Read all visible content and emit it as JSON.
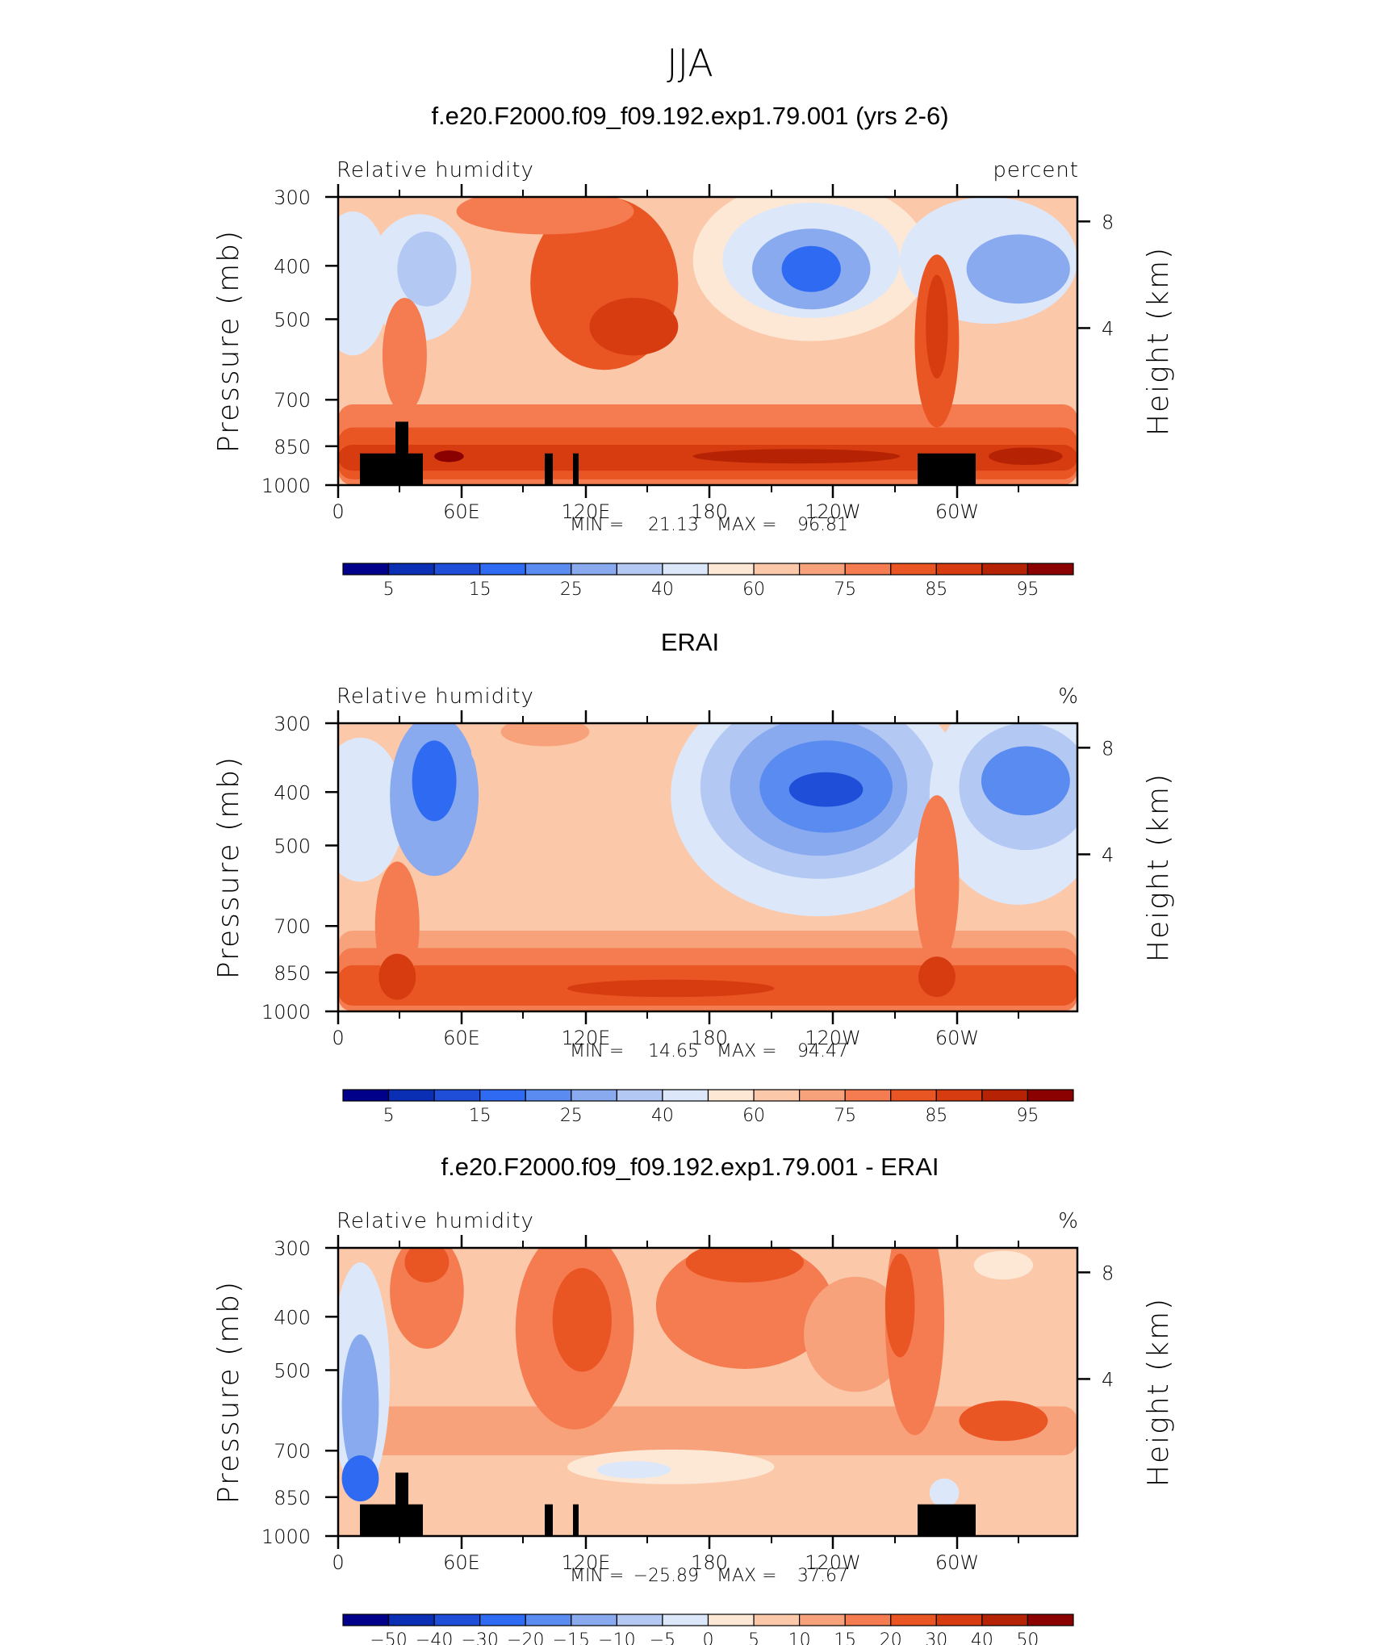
{
  "figure": {
    "title": "JJA"
  },
  "chart_data": [
    {
      "type": "heatmap",
      "title": "f.e20.F2000.f09_f09.192.exp1.79.001 (yrs 2-6)",
      "left_label": "Relative humidity",
      "units_label": "percent",
      "ylabel": "Pressure (mb)",
      "ylabel_right": "Height (km)",
      "xlabel": "",
      "x_ticks": [
        "0",
        "60E",
        "120E",
        "180",
        "120W",
        "60W"
      ],
      "y_ticks": [
        "300",
        "400",
        "500",
        "700",
        "850",
        "1000"
      ],
      "y_ticks_right": [
        "8",
        "4"
      ],
      "xlim": [
        0,
        360
      ],
      "ylim": [
        1000,
        300
      ],
      "stats": {
        "min_label": "MIN =",
        "min": "21.13",
        "max_label": "MAX =",
        "max": "96.81"
      },
      "colorbar": {
        "colors": [
          "#00008b",
          "#0a2fb4",
          "#1f4fd8",
          "#2f6bf2",
          "#5a8bf0",
          "#8aaaf0",
          "#b4c8f4",
          "#dce8fa",
          "#fde8d6",
          "#fcc8aa",
          "#f8a27c",
          "#f47c50",
          "#ea5524",
          "#d63c10",
          "#b62204",
          "#8b0000"
        ],
        "labels": [
          "5",
          "15",
          "25",
          "40",
          "60",
          "75",
          "85",
          "95"
        ],
        "label_after_box": [
          0,
          2,
          4,
          6,
          8,
          10,
          12,
          14
        ]
      }
    },
    {
      "type": "heatmap",
      "title": "ERAI",
      "left_label": "Relative humidity",
      "units_label": "%",
      "ylabel": "Pressure (mb)",
      "ylabel_right": "Height (km)",
      "xlabel": "",
      "x_ticks": [
        "0",
        "60E",
        "120E",
        "180",
        "120W",
        "60W"
      ],
      "y_ticks": [
        "300",
        "400",
        "500",
        "700",
        "850",
        "1000"
      ],
      "y_ticks_right": [
        "8",
        "4"
      ],
      "xlim": [
        0,
        360
      ],
      "ylim": [
        1000,
        300
      ],
      "stats": {
        "min_label": "MIN =",
        "min": "14.65",
        "max_label": "MAX =",
        "max": "94.47"
      },
      "colorbar": {
        "colors": [
          "#00008b",
          "#0a2fb4",
          "#1f4fd8",
          "#2f6bf2",
          "#5a8bf0",
          "#8aaaf0",
          "#b4c8f4",
          "#dce8fa",
          "#fde8d6",
          "#fcc8aa",
          "#f8a27c",
          "#f47c50",
          "#ea5524",
          "#d63c10",
          "#b62204",
          "#8b0000"
        ],
        "labels": [
          "5",
          "15",
          "25",
          "40",
          "60",
          "75",
          "85",
          "95"
        ],
        "label_after_box": [
          0,
          2,
          4,
          6,
          8,
          10,
          12,
          14
        ]
      }
    },
    {
      "type": "heatmap",
      "title": "f.e20.F2000.f09_f09.192.exp1.79.001 - ERAI",
      "left_label": "Relative humidity",
      "units_label": "%",
      "ylabel": "Pressure (mb)",
      "ylabel_right": "Height (km)",
      "xlabel": "",
      "x_ticks": [
        "0",
        "60E",
        "120E",
        "180",
        "120W",
        "60W"
      ],
      "y_ticks": [
        "300",
        "400",
        "500",
        "700",
        "850",
        "1000"
      ],
      "y_ticks_right": [
        "8",
        "4"
      ],
      "xlim": [
        0,
        360
      ],
      "ylim": [
        1000,
        300
      ],
      "stats": {
        "min_label": "MIN =",
        "min": "−25.89",
        "max_label": "MAX =",
        "max": "37.67"
      },
      "colorbar": {
        "colors": [
          "#00008b",
          "#0a2fb4",
          "#1f4fd8",
          "#2f6bf2",
          "#5a8bf0",
          "#8aaaf0",
          "#b4c8f4",
          "#dce8fa",
          "#fde8d6",
          "#fcc8aa",
          "#f8a27c",
          "#f47c50",
          "#ea5524",
          "#d63c10",
          "#b62204",
          "#8b0000"
        ],
        "labels": [
          "−50",
          "−40",
          "−30",
          "−20",
          "−15",
          "−10",
          "−5",
          "0",
          "5",
          "10",
          "15",
          "20",
          "30",
          "40",
          "50"
        ],
        "label_after_box": [
          0,
          1,
          2,
          3,
          4,
          5,
          6,
          7,
          8,
          9,
          10,
          11,
          12,
          13,
          14
        ]
      }
    }
  ]
}
